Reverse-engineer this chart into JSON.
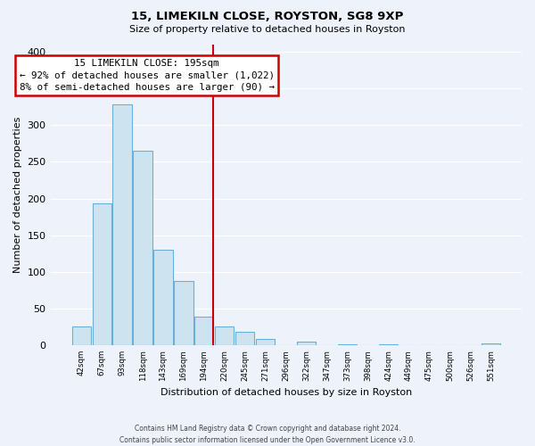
{
  "title": "15, LIMEKILN CLOSE, ROYSTON, SG8 9XP",
  "subtitle": "Size of property relative to detached houses in Royston",
  "xlabel": "Distribution of detached houses by size in Royston",
  "ylabel": "Number of detached properties",
  "bin_labels": [
    "42sqm",
    "67sqm",
    "93sqm",
    "118sqm",
    "143sqm",
    "169sqm",
    "194sqm",
    "220sqm",
    "245sqm",
    "271sqm",
    "296sqm",
    "322sqm",
    "347sqm",
    "373sqm",
    "398sqm",
    "424sqm",
    "449sqm",
    "475sqm",
    "500sqm",
    "526sqm",
    "551sqm"
  ],
  "bar_heights": [
    25,
    193,
    328,
    265,
    130,
    87,
    39,
    26,
    18,
    8,
    0,
    5,
    0,
    1,
    0,
    1,
    0,
    0,
    0,
    0,
    2
  ],
  "bar_color": "#cde4f0",
  "bar_edge_color": "#6baed6",
  "vline_x_index": 6,
  "vline_color": "#cc0000",
  "annotation_title": "15 LIMEKILN CLOSE: 195sqm",
  "annotation_line1": "← 92% of detached houses are smaller (1,022)",
  "annotation_line2": "8% of semi-detached houses are larger (90) →",
  "footer_line1": "Contains HM Land Registry data © Crown copyright and database right 2024.",
  "footer_line2": "Contains public sector information licensed under the Open Government Licence v3.0.",
  "ylim": [
    0,
    410
  ],
  "yticks": [
    0,
    50,
    100,
    150,
    200,
    250,
    300,
    350,
    400
  ],
  "background_color": "#eef2fb",
  "grid_color": "#ffffff"
}
